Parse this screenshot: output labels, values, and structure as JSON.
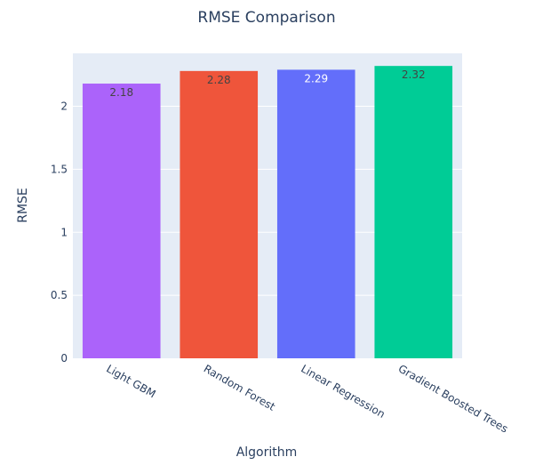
{
  "chart_data": {
    "type": "bar",
    "title": "RMSE Comparison",
    "xlabel": "Algorithm",
    "ylabel": "RMSE",
    "categories": [
      "Light GBM",
      "Random Forest",
      "Linear Regression",
      "Gradient Boosted Trees"
    ],
    "values": [
      2.18,
      2.28,
      2.29,
      2.32
    ],
    "data_labels": [
      "2.18",
      "2.28",
      "2.29",
      "2.32"
    ],
    "bar_colors": [
      "#ab63fa",
      "#ef553b",
      "#636efa",
      "#00cc96"
    ],
    "label_colors": [
      "#444444",
      "#444444",
      "#ffffff",
      "#444444"
    ],
    "ylim": [
      0,
      2.42
    ],
    "yticks": [
      0,
      0.5,
      1,
      1.5,
      2
    ],
    "ytick_labels": [
      "0",
      "0.5",
      "1",
      "1.5",
      "2"
    ],
    "grid": true,
    "legend": "none",
    "plot_background": "#e5ecf6"
  }
}
